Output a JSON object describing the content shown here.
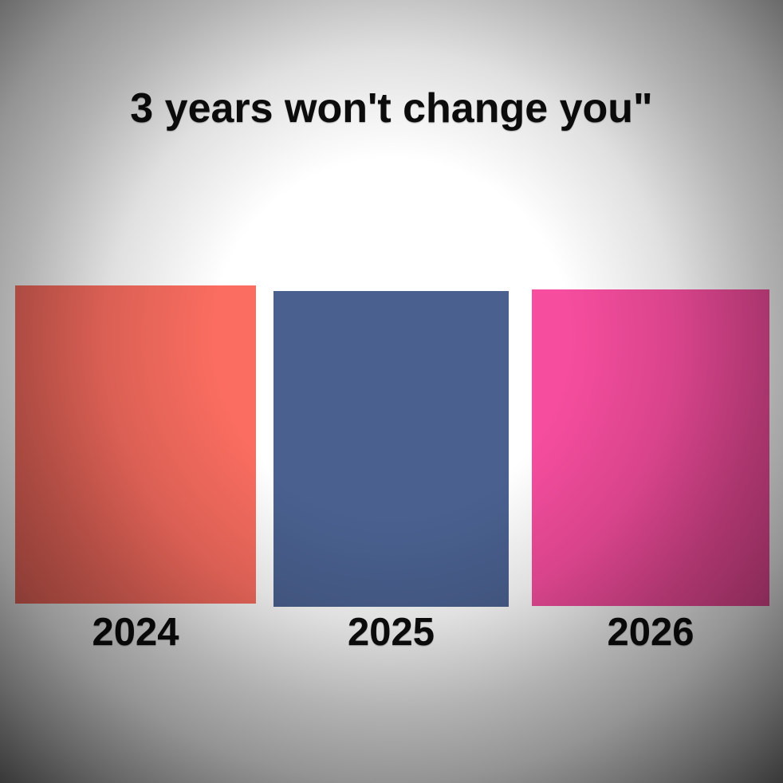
{
  "meme": {
    "title": "3 years won't change you\""
  },
  "chart_data": {
    "type": "bar",
    "title": "3 years won't change you\"",
    "categories": [
      "2024",
      "2025",
      "2026"
    ],
    "values": [
      399,
      396,
      397
    ],
    "values_unit": "px (no numeric axis shown; bars visually equal height)",
    "xlabel": "",
    "ylabel": "",
    "axes_visible": false,
    "gridlines": false,
    "legend_visible": false,
    "bars": [
      {
        "label": "2024",
        "color": "#fa6d60"
      },
      {
        "label": "2025",
        "color": "#4a6190"
      },
      {
        "label": "2026",
        "color": "#f64d9e"
      }
    ],
    "background": {
      "style": "radial-vignette",
      "center_color": "#ffffff",
      "corner_color": "#3c3c3c"
    },
    "text_color": "#0d0d0d"
  }
}
